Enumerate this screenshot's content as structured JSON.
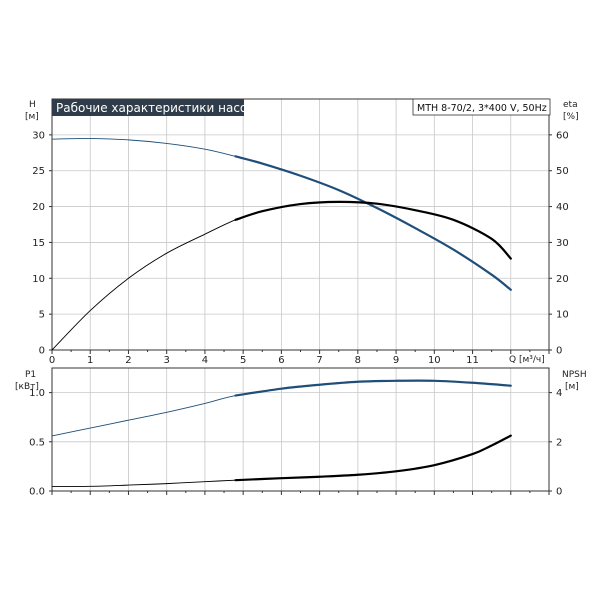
{
  "title": "Рабочие характеристики насоса",
  "model_box": "MTH 8-70/2, 3*400 V, 50Hz",
  "colors": {
    "title_bg": "#2f3d4a",
    "title_fg": "#ffffff",
    "blue": "#1f4e79",
    "black": "#000000",
    "grid": "#c8c8c8"
  },
  "chart_data": [
    {
      "type": "line",
      "title": "Рабочие характеристики насоса",
      "xlabel": "Q [м³/ч]",
      "x_ticks": [
        "0",
        "1",
        "2",
        "3",
        "4",
        "5",
        "6",
        "7",
        "8",
        "9",
        "10",
        "11"
      ],
      "xlim": [
        0,
        13
      ],
      "left_axis": {
        "name": "H",
        "unit": "[м]",
        "ticks": [
          "0",
          "5",
          "10",
          "15",
          "20",
          "25",
          "30"
        ],
        "lim": [
          0,
          35
        ]
      },
      "right_axis": {
        "name": "eta",
        "unit": "[%]",
        "ticks": [
          "0",
          "10",
          "20",
          "30",
          "40",
          "50",
          "60"
        ],
        "lim": [
          0,
          70
        ]
      },
      "grid": true,
      "series": [
        {
          "axis": "left",
          "color": "blue",
          "x": [
            0,
            1,
            2,
            3,
            4,
            4.8,
            5.5,
            6.5,
            7.5,
            8.5,
            9.5,
            10.5,
            11.5,
            12
          ],
          "y": [
            29.4,
            29.5,
            29.3,
            28.8,
            28.0,
            27.0,
            26.0,
            24.3,
            22.3,
            19.8,
            17.0,
            14.0,
            10.5,
            8.4
          ],
          "bold_from": 4.8
        },
        {
          "axis": "right",
          "color": "black",
          "x": [
            0,
            1,
            2,
            3,
            4,
            4.8,
            5.5,
            6.5,
            7.5,
            8.5,
            9.5,
            10.5,
            11.5,
            12
          ],
          "y": [
            0,
            11.0,
            20.0,
            27.0,
            32.3,
            36.3,
            38.7,
            40.7,
            41.3,
            40.8,
            39.0,
            36.3,
            31.0,
            25.5
          ],
          "bold_from": 4.8
        }
      ]
    },
    {
      "type": "line",
      "x_ticks": [
        "0",
        "1",
        "2",
        "3",
        "4",
        "5",
        "6",
        "7",
        "8",
        "9",
        "10",
        "11"
      ],
      "xlim": [
        0,
        13
      ],
      "left_axis": {
        "name": "P1",
        "unit": "[кВт]",
        "ticks": [
          "0.0",
          "0.5",
          "1.0"
        ],
        "lim": [
          0,
          1.25
        ]
      },
      "right_axis": {
        "name": "NPSH",
        "unit": "[м]",
        "ticks": [
          "0",
          "2",
          "4"
        ],
        "lim": [
          0,
          5
        ]
      },
      "grid": true,
      "series": [
        {
          "axis": "left",
          "color": "blue",
          "x": [
            0,
            1,
            2,
            3,
            4,
            4.8,
            6,
            7,
            8,
            9,
            10,
            11,
            12
          ],
          "y": [
            0.56,
            0.64,
            0.72,
            0.8,
            0.89,
            0.97,
            1.04,
            1.08,
            1.11,
            1.12,
            1.12,
            1.1,
            1.07
          ],
          "bold_from": 4.8
        },
        {
          "axis": "right",
          "color": "black",
          "x": [
            0,
            1,
            2,
            3,
            4,
            4.8,
            6,
            7,
            8,
            9,
            10,
            11,
            11.5,
            12
          ],
          "y": [
            0.18,
            0.19,
            0.24,
            0.3,
            0.38,
            0.44,
            0.52,
            0.58,
            0.66,
            0.8,
            1.05,
            1.5,
            1.85,
            2.25
          ],
          "bold_from": 4.8
        }
      ]
    }
  ]
}
